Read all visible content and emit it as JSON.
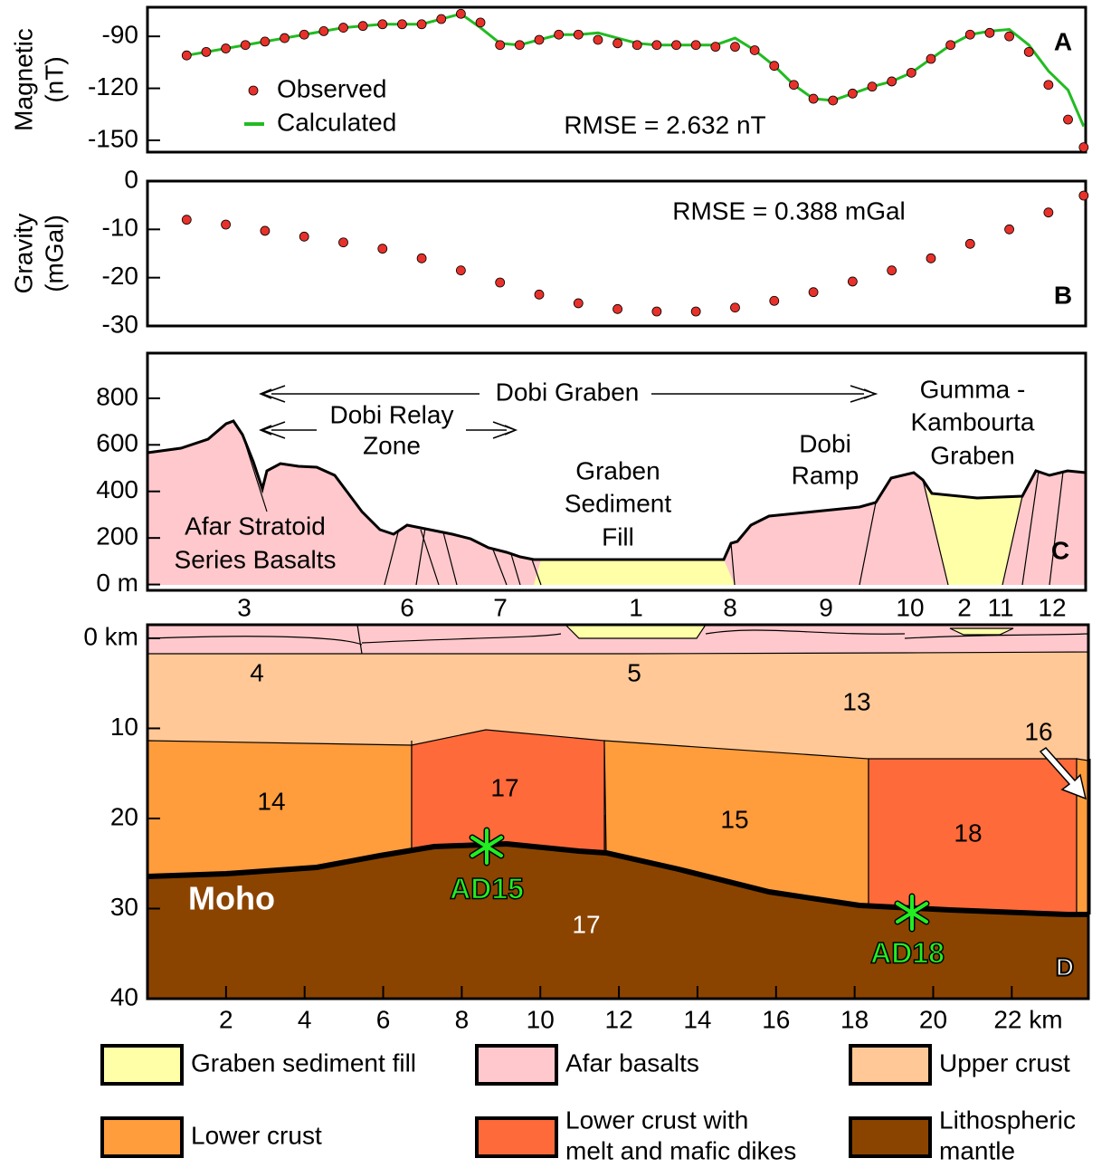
{
  "chart_data": [
    {
      "type": "scatter",
      "panel_label": "A",
      "ylabel": [
        "Magnetic",
        "(nT)"
      ],
      "annotation": "RMSE = 2.632 nT",
      "xlim": [
        0,
        23.95
      ],
      "ylim": [
        -156.8,
        -73.2
      ],
      "yticks": [
        -90,
        -120,
        -150
      ],
      "x": [
        1,
        1.5,
        2,
        2.5,
        3,
        3.5,
        4,
        4.5,
        5,
        5.5,
        6,
        6.5,
        7,
        7.5,
        8,
        8.5,
        9,
        9.5,
        10,
        10.5,
        11,
        11.5,
        12,
        12.5,
        13,
        13.5,
        14,
        14.5,
        15,
        15.5,
        16,
        16.5,
        17,
        17.5,
        18,
        18.5,
        19,
        19.5,
        20,
        20.5,
        21,
        21.5,
        22,
        22.5,
        23,
        23.5,
        23.9
      ],
      "series": [
        {
          "name": "Observed",
          "color": "#e8312a",
          "mode": "markers",
          "values": [
            -101,
            -99,
            -97,
            -95,
            -93,
            -91,
            -89,
            -87,
            -85,
            -84,
            -83,
            -83,
            -83,
            -80,
            -77,
            -82,
            -95,
            -95,
            -92,
            -89,
            -89,
            -92,
            -94,
            -95,
            -95,
            -95,
            -95,
            -96,
            -96,
            -98,
            -107,
            -118,
            -126,
            -127,
            -123,
            -119,
            -116,
            -111,
            -103,
            -95,
            -89,
            -88,
            -90,
            -99,
            -118,
            -138,
            -154
          ]
        },
        {
          "name": "Calculated",
          "color": "#22bb22",
          "mode": "line",
          "values": [
            -101,
            -99,
            -97,
            -95,
            -93,
            -91,
            -89,
            -87,
            -85,
            -84,
            -83,
            -83,
            -83,
            -80,
            -77,
            -85,
            -94,
            -95,
            -92,
            -89,
            -89,
            -88,
            -91,
            -94,
            -95,
            -95,
            -95,
            -95,
            -91,
            -98,
            -107,
            -118,
            -126,
            -127,
            -123,
            -119,
            -116,
            -111,
            -103,
            -95,
            -89,
            -87,
            -86,
            -95,
            -110,
            -121,
            -142
          ]
        }
      ]
    },
    {
      "type": "scatter",
      "panel_label": "B",
      "ylabel": [
        "Gravity",
        "(mGal)"
      ],
      "annotation": "RMSE = 0.388 mGal",
      "xlim": [
        0,
        23.95
      ],
      "ylim": [
        -30,
        0
      ],
      "yticks": [
        0,
        -10,
        -20,
        -30
      ],
      "x": [
        1,
        2,
        3,
        4,
        5,
        6,
        7,
        8,
        9,
        10,
        11,
        12,
        13,
        14,
        15,
        16,
        17,
        18,
        19,
        20,
        21,
        22,
        23,
        23.9
      ],
      "series": [
        {
          "name": "Observed",
          "color": "#e8312a",
          "mode": "markers",
          "values": [
            -8,
            -9,
            -10.3,
            -11.5,
            -12.7,
            -14,
            -16,
            -18.5,
            -21,
            -23.5,
            -25.3,
            -26.5,
            -27,
            -27,
            -26.2,
            -24.8,
            -23,
            -20.8,
            -18.5,
            -16,
            -13,
            -10,
            -6.5,
            -3
          ]
        }
      ]
    },
    {
      "type": "cross-section",
      "panel_label": "C",
      "xlim": [
        0,
        23.95
      ],
      "ylim": [
        -25,
        994
      ],
      "yticks": [
        {
          "value": 0,
          "label": "0 m"
        },
        200,
        400,
        600,
        800
      ],
      "annotations": [
        "Dobi Graben",
        "Dobi Relay",
        "Zone",
        "Afar Stratoid",
        "Series Basalts",
        "Graben",
        "Sediment",
        "Fill",
        "Dobi",
        "Ramp",
        "Gumma -",
        "Kambourta",
        "Graben"
      ],
      "units": [
        3,
        6,
        7,
        1,
        8,
        9,
        10,
        2,
        11,
        12
      ]
    },
    {
      "type": "cross-section",
      "panel_label": "D",
      "xlim": [
        0,
        23.95
      ],
      "ylim": [
        -1.5,
        40
      ],
      "invert_y": true,
      "yticks": [
        {
          "value": 0,
          "label": "0 km"
        },
        10,
        20,
        30,
        40
      ],
      "xticks": [
        2,
        4,
        6,
        8,
        10,
        12,
        14,
        16,
        18,
        20,
        {
          "value": 22,
          "label": "22 km"
        }
      ],
      "units": [
        4,
        5,
        13,
        14,
        17,
        15,
        18,
        16,
        17
      ],
      "annotations": [
        "Moho",
        "AD15",
        "AD18"
      ],
      "legend": [
        {
          "name": [
            "Graben sediment fill"
          ],
          "color": "#ffffa8"
        },
        {
          "name": [
            "Afar basalts"
          ],
          "color": "#ffc8cc"
        },
        {
          "name": [
            "Upper crust"
          ],
          "color": "#ffc896"
        },
        {
          "name": [
            "Lower crust"
          ],
          "color": "#ff9c3c"
        },
        {
          "name": [
            "Lower crust with",
            "melt and mafic dikes"
          ],
          "color": "#ff6a3a"
        },
        {
          "name": [
            "Lithospheric",
            "mantle"
          ],
          "color": "#8b4400"
        }
      ]
    }
  ]
}
